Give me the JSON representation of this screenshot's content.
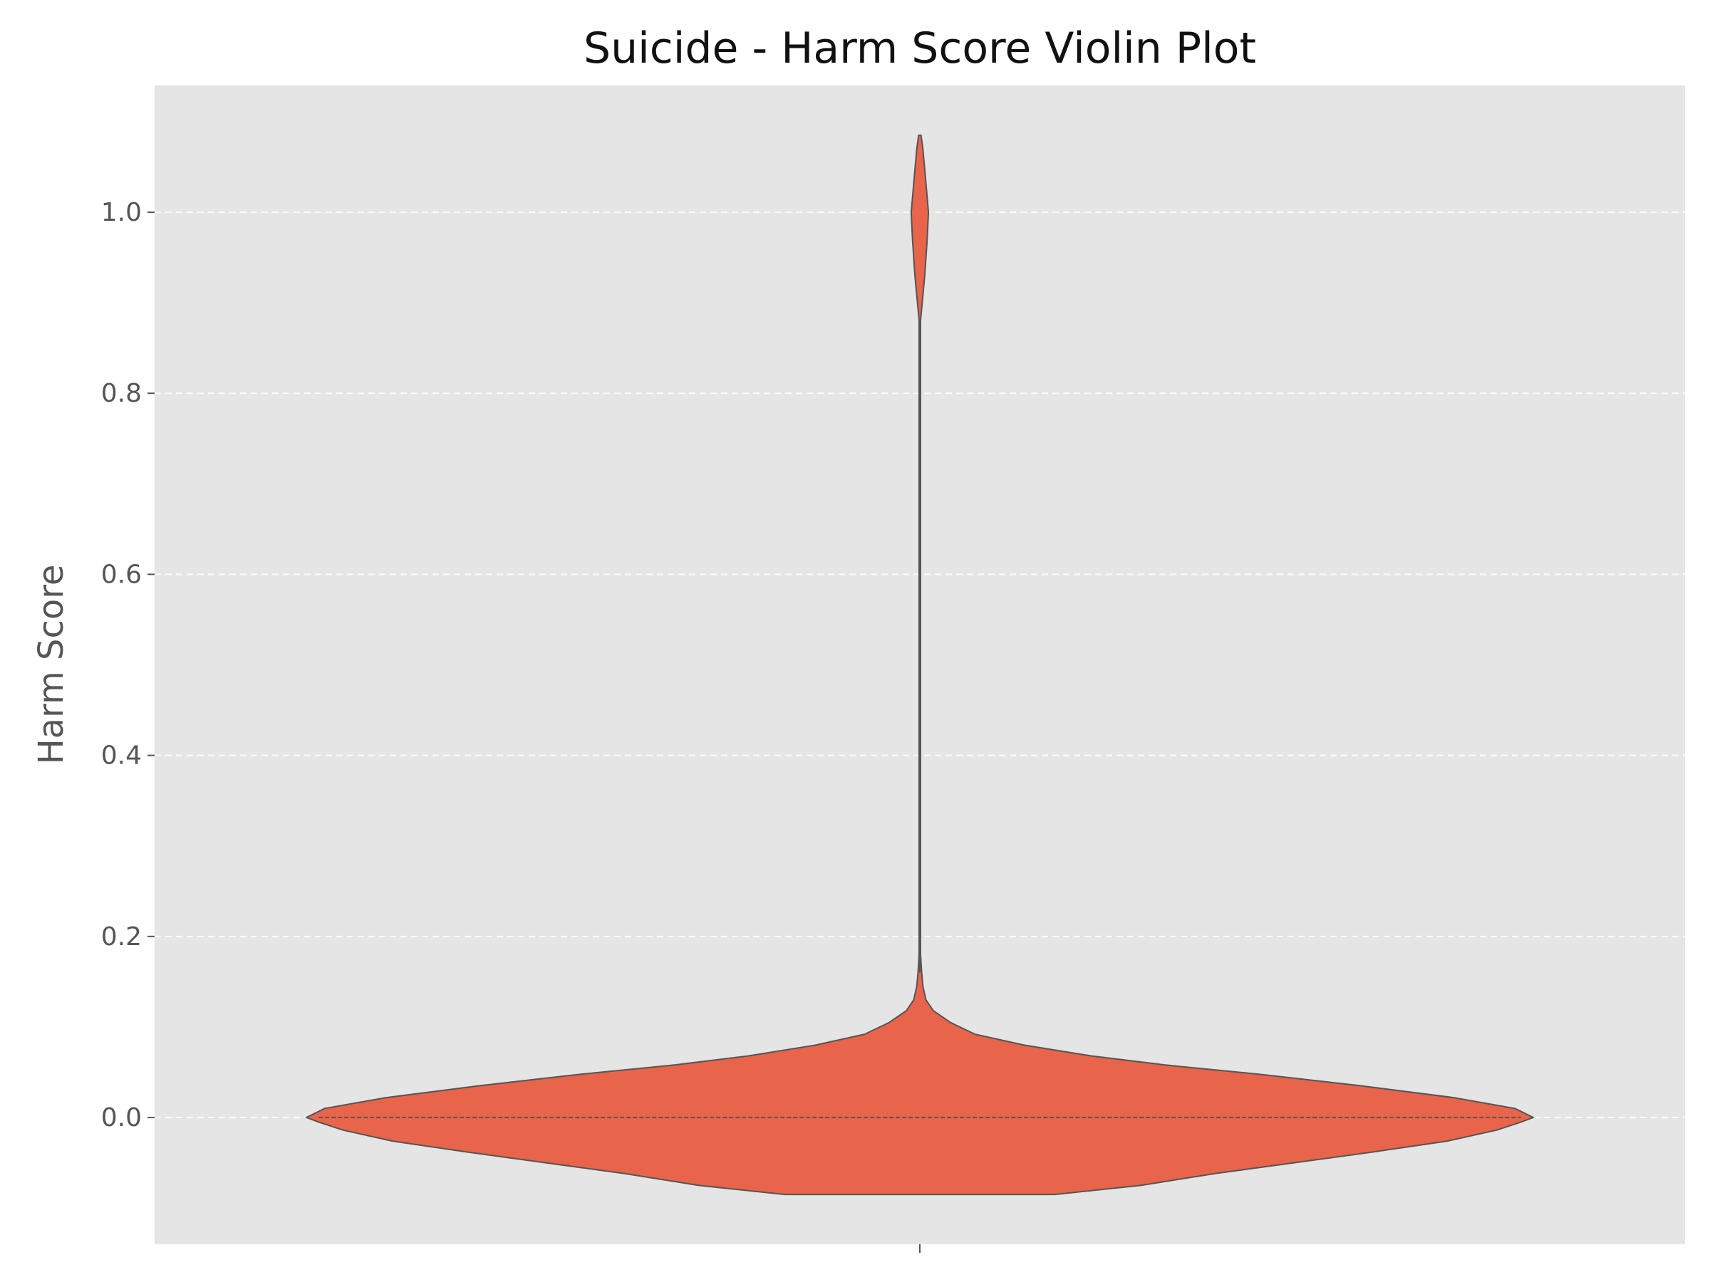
{
  "chart_data": {
    "type": "violin",
    "title": "Suicide - Harm Score Violin Plot",
    "xlabel": "",
    "ylabel": "Harm Score",
    "ylim": [
      -0.14,
      1.14
    ],
    "yticks": [
      0.0,
      0.2,
      0.4,
      0.6,
      0.8,
      1.0
    ],
    "ytick_labels": [
      "0.0",
      "0.2",
      "0.4",
      "0.6",
      "0.8",
      "1.0"
    ],
    "grid": "y-dashed",
    "colors": {
      "violin_fill": "#E8644A",
      "violin_edge": "#555555",
      "plot_bg": "#E5E5E5",
      "grid": "#FFFFFF"
    },
    "series": [
      {
        "category": "",
        "median": 0.0,
        "y_min": -0.085,
        "y_max": 1.085,
        "density_profile": [
          [
            -0.085,
            0.22
          ],
          [
            -0.075,
            0.36
          ],
          [
            -0.062,
            0.48
          ],
          [
            -0.05,
            0.61
          ],
          [
            -0.038,
            0.74
          ],
          [
            -0.026,
            0.86
          ],
          [
            -0.014,
            0.94
          ],
          [
            -0.005,
            0.98
          ],
          [
            0.0,
            1.0
          ],
          [
            0.01,
            0.97
          ],
          [
            0.022,
            0.87
          ],
          [
            0.035,
            0.72
          ],
          [
            0.048,
            0.55
          ],
          [
            0.058,
            0.4
          ],
          [
            0.068,
            0.28
          ],
          [
            0.08,
            0.17
          ],
          [
            0.092,
            0.09
          ],
          [
            0.105,
            0.05
          ],
          [
            0.118,
            0.022
          ],
          [
            0.13,
            0.01
          ],
          [
            0.145,
            0.005
          ],
          [
            0.16,
            0.003
          ],
          [
            0.18,
            0.0012
          ],
          [
            0.25,
            0.0008
          ],
          [
            0.5,
            0.0008
          ],
          [
            0.8,
            0.0008
          ],
          [
            0.88,
            0.0012
          ],
          [
            0.93,
            0.008
          ],
          [
            0.97,
            0.012
          ],
          [
            1.0,
            0.014
          ],
          [
            1.04,
            0.009
          ],
          [
            1.07,
            0.005
          ],
          [
            1.085,
            0.002
          ]
        ]
      }
    ]
  }
}
